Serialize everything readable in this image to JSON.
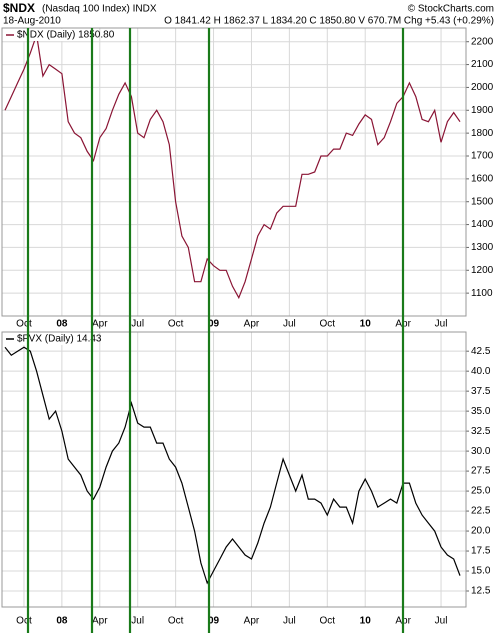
{
  "header": {
    "symbol": "$NDX",
    "name": "(Nasdaq 100 Index) INDX",
    "copyright": "© StockCharts.com",
    "date": "18-Aug-2010",
    "quote": "O 1841.42 H 1862.37 L 1834.20 C 1850.80 V 670.7M Chg +5.43 (+0.29%)"
  },
  "chart_data": [
    {
      "type": "line",
      "categories": [
        null,
        null,
        null,
        "Oct",
        null,
        null,
        null,
        null,
        null,
        "08",
        null,
        null,
        null,
        null,
        null,
        "Apr",
        null,
        null,
        null,
        null,
        null,
        "Jul",
        null,
        null,
        null,
        null,
        null,
        "Oct",
        null,
        null,
        null,
        null,
        null,
        "09",
        null,
        null,
        null,
        null,
        null,
        "Apr",
        null,
        null,
        null,
        null,
        null,
        "Jul",
        null,
        null,
        null,
        null,
        null,
        "Oct",
        null,
        null,
        null,
        null,
        null,
        "10",
        null,
        null,
        null,
        null,
        null,
        "Apr",
        null,
        null,
        null,
        null,
        null,
        "Jul",
        null,
        null,
        null
      ],
      "series": [
        {
          "name": "$NDX (Daily) 1850.80",
          "color": "#8a1434",
          "values": [
            1900,
            1960,
            2020,
            2080,
            2150,
            2230,
            2050,
            2100,
            2080,
            2060,
            1850,
            1800,
            1780,
            1720,
            1680,
            1780,
            1820,
            1900,
            1970,
            2020,
            1960,
            1800,
            1780,
            1860,
            1900,
            1850,
            1750,
            1500,
            1350,
            1300,
            1150,
            1150,
            1250,
            1220,
            1200,
            1200,
            1130,
            1080,
            1150,
            1250,
            1350,
            1400,
            1380,
            1450,
            1480,
            1480,
            1480,
            1620,
            1620,
            1630,
            1700,
            1700,
            1730,
            1730,
            1800,
            1790,
            1840,
            1880,
            1860,
            1750,
            1780,
            1850,
            1930,
            1960,
            2020,
            1960,
            1860,
            1850,
            1900,
            1760,
            1850,
            1890,
            1850
          ]
        }
      ],
      "ylim": [
        1000,
        2260
      ],
      "yticks": [
        1100,
        1200,
        1300,
        1400,
        1500,
        1600,
        1700,
        1800,
        1900,
        2000,
        2100,
        2200
      ],
      "grid": true
    },
    {
      "type": "line",
      "categories": [
        null,
        null,
        null,
        "Oct",
        null,
        null,
        null,
        null,
        null,
        "08",
        null,
        null,
        null,
        null,
        null,
        "Apr",
        null,
        null,
        null,
        null,
        null,
        "Jul",
        null,
        null,
        null,
        null,
        null,
        "Oct",
        null,
        null,
        null,
        null,
        null,
        "09",
        null,
        null,
        null,
        null,
        null,
        "Apr",
        null,
        null,
        null,
        null,
        null,
        "Jul",
        null,
        null,
        null,
        null,
        null,
        "Oct",
        null,
        null,
        null,
        null,
        null,
        "10",
        null,
        null,
        null,
        null,
        null,
        "Apr",
        null,
        null,
        null,
        null,
        null,
        "Jul",
        null,
        null,
        null
      ],
      "series": [
        {
          "name": "$FVX (Daily) 14.43",
          "color": "#000000",
          "values": [
            43,
            42,
            42.5,
            43,
            42.5,
            40,
            37,
            34,
            35,
            32.5,
            29,
            28,
            27,
            25,
            24,
            25.5,
            28,
            30,
            31,
            33,
            36,
            33.5,
            33,
            33,
            31,
            31,
            29,
            28,
            26,
            23,
            20,
            16,
            13.5,
            15,
            16.5,
            18,
            19,
            18,
            17,
            16.5,
            18.5,
            21,
            23,
            26,
            29,
            27,
            25,
            27,
            24,
            24,
            23.5,
            22,
            24,
            23,
            23,
            21,
            25,
            26.5,
            25,
            23,
            23.5,
            24,
            23.5,
            26,
            26,
            23.5,
            22,
            21,
            20,
            18,
            17,
            16.5,
            14.43
          ]
        }
      ],
      "ylim": [
        10.5,
        44.9
      ],
      "yticks": [
        12.5,
        {
          "value": 15,
          "label": "15.0"
        },
        17.5,
        {
          "value": 20,
          "label": "20.0"
        },
        22.5,
        {
          "value": 25,
          "label": "25.0"
        },
        27.5,
        {
          "value": 30,
          "label": "30.0"
        },
        32.5,
        {
          "value": 35,
          "label": "35.0"
        },
        37.5,
        {
          "value": 40,
          "label": "40.0"
        },
        42.5
      ],
      "grid": true
    }
  ]
}
